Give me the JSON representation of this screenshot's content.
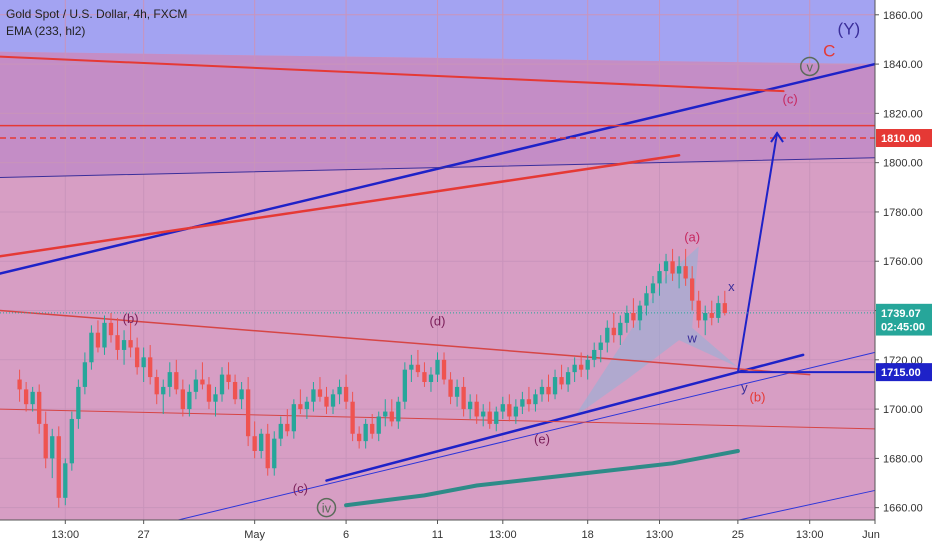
{
  "header": {
    "symbol_line": "Gold Spot / U.S. Dollar, 4h, FXCM",
    "indicator_line": "EMA (233, hl2)"
  },
  "chart_data": {
    "type": "candlestick",
    "symbol": "Gold Spot / U.S. Dollar",
    "timeframe": "4h",
    "source": "FXCM",
    "y_axis": {
      "range": [
        1655,
        1866
      ],
      "ticks": [
        1660,
        1680,
        1700,
        1720,
        1740,
        1760,
        1780,
        1800,
        1820,
        1840,
        1860
      ],
      "tick_labels": [
        "1660.00",
        "1680.00",
        "1700.00",
        "1720.00",
        "1740.00",
        "1760.00",
        "1780.00",
        "1800.00",
        "1820.00",
        "1840.00",
        "1860.00"
      ]
    },
    "x_axis": {
      "range_bars": [
        0,
        130
      ],
      "tick_bars": [
        7,
        19,
        36,
        50,
        64,
        74,
        87,
        98,
        110,
        121,
        131
      ],
      "tick_labels": [
        "13:00",
        "27",
        "May",
        "6",
        "11",
        "13:00",
        "18",
        "13:00",
        "25",
        "13:00",
        "Jun"
      ]
    },
    "price_labels": [
      {
        "text": "1810.00",
        "value": 1810.0,
        "color": "#e53935"
      },
      {
        "text": "1739.07",
        "value": 1739.07,
        "color": "#26a69a"
      },
      {
        "text": "02:45:00",
        "value": 1733.5,
        "color": "#26a69a"
      },
      {
        "text": "1715.00",
        "value": 1715.0,
        "color": "#1e22c8"
      }
    ],
    "candles_ohlc": [
      [
        1712,
        1716,
        1703,
        1708
      ],
      [
        1708,
        1711,
        1699,
        1702
      ],
      [
        1702,
        1709,
        1699,
        1707
      ],
      [
        1707,
        1710,
        1690,
        1694
      ],
      [
        1694,
        1699,
        1676,
        1680
      ],
      [
        1680,
        1692,
        1672,
        1689
      ],
      [
        1689,
        1693,
        1660,
        1664
      ],
      [
        1664,
        1680,
        1661,
        1678
      ],
      [
        1678,
        1699,
        1675,
        1696
      ],
      [
        1696,
        1712,
        1692,
        1709
      ],
      [
        1709,
        1723,
        1706,
        1719
      ],
      [
        1719,
        1734,
        1716,
        1731
      ],
      [
        1731,
        1736,
        1723,
        1725
      ],
      [
        1725,
        1738,
        1722,
        1735
      ],
      [
        1735,
        1739,
        1727,
        1730
      ],
      [
        1730,
        1737,
        1720,
        1724
      ],
      [
        1724,
        1732,
        1718,
        1728
      ],
      [
        1728,
        1735,
        1721,
        1725
      ],
      [
        1725,
        1729,
        1714,
        1717
      ],
      [
        1717,
        1725,
        1711,
        1721
      ],
      [
        1721,
        1726,
        1710,
        1713
      ],
      [
        1713,
        1716,
        1702,
        1706
      ],
      [
        1706,
        1712,
        1698,
        1709
      ],
      [
        1709,
        1719,
        1705,
        1715
      ],
      [
        1715,
        1720,
        1706,
        1708
      ],
      [
        1708,
        1712,
        1697,
        1700
      ],
      [
        1700,
        1710,
        1697,
        1707
      ],
      [
        1707,
        1716,
        1704,
        1712
      ],
      [
        1712,
        1719,
        1708,
        1710
      ],
      [
        1710,
        1713,
        1700,
        1703
      ],
      [
        1703,
        1709,
        1697,
        1706
      ],
      [
        1706,
        1717,
        1703,
        1714
      ],
      [
        1714,
        1719,
        1708,
        1711
      ],
      [
        1711,
        1714,
        1702,
        1704
      ],
      [
        1704,
        1711,
        1700,
        1708
      ],
      [
        1708,
        1713,
        1685,
        1689
      ],
      [
        1689,
        1695,
        1680,
        1683
      ],
      [
        1683,
        1692,
        1680,
        1690
      ],
      [
        1690,
        1694,
        1673,
        1676
      ],
      [
        1676,
        1691,
        1673,
        1688
      ],
      [
        1688,
        1697,
        1685,
        1694
      ],
      [
        1694,
        1700,
        1689,
        1691
      ],
      [
        1691,
        1704,
        1688,
        1702
      ],
      [
        1702,
        1708,
        1698,
        1700
      ],
      [
        1700,
        1705,
        1696,
        1703
      ],
      [
        1703,
        1711,
        1699,
        1708
      ],
      [
        1708,
        1713,
        1703,
        1705
      ],
      [
        1705,
        1709,
        1698,
        1701
      ],
      [
        1701,
        1708,
        1698,
        1706
      ],
      [
        1706,
        1712,
        1702,
        1709
      ],
      [
        1709,
        1714,
        1700,
        1703
      ],
      [
        1703,
        1707,
        1687,
        1690
      ],
      [
        1690,
        1693,
        1684,
        1687
      ],
      [
        1687,
        1696,
        1684,
        1694
      ],
      [
        1694,
        1698,
        1688,
        1690
      ],
      [
        1690,
        1699,
        1687,
        1697
      ],
      [
        1697,
        1704,
        1693,
        1699
      ],
      [
        1699,
        1704,
        1693,
        1695
      ],
      [
        1695,
        1705,
        1692,
        1703
      ],
      [
        1703,
        1719,
        1700,
        1716
      ],
      [
        1716,
        1722,
        1711,
        1718
      ],
      [
        1718,
        1724,
        1713,
        1715
      ],
      [
        1715,
        1719,
        1709,
        1711
      ],
      [
        1711,
        1717,
        1707,
        1714
      ],
      [
        1714,
        1723,
        1711,
        1720
      ],
      [
        1720,
        1723,
        1710,
        1712
      ],
      [
        1712,
        1715,
        1702,
        1705
      ],
      [
        1705,
        1712,
        1701,
        1709
      ],
      [
        1709,
        1713,
        1697,
        1700
      ],
      [
        1700,
        1706,
        1696,
        1703
      ],
      [
        1703,
        1706,
        1694,
        1697
      ],
      [
        1697,
        1702,
        1693,
        1699
      ],
      [
        1699,
        1703,
        1692,
        1694
      ],
      [
        1694,
        1701,
        1691,
        1699
      ],
      [
        1699,
        1705,
        1696,
        1702
      ],
      [
        1702,
        1706,
        1695,
        1697
      ],
      [
        1697,
        1704,
        1694,
        1701
      ],
      [
        1701,
        1707,
        1698,
        1704
      ],
      [
        1704,
        1709,
        1699,
        1702
      ],
      [
        1702,
        1708,
        1699,
        1706
      ],
      [
        1706,
        1712,
        1703,
        1709
      ],
      [
        1709,
        1714,
        1703,
        1706
      ],
      [
        1706,
        1716,
        1704,
        1713
      ],
      [
        1713,
        1718,
        1708,
        1710
      ],
      [
        1710,
        1717,
        1707,
        1715
      ],
      [
        1715,
        1721,
        1711,
        1718
      ],
      [
        1718,
        1723,
        1713,
        1716
      ],
      [
        1716,
        1722,
        1712,
        1720
      ],
      [
        1720,
        1727,
        1717,
        1724
      ],
      [
        1724,
        1730,
        1719,
        1727
      ],
      [
        1727,
        1736,
        1723,
        1733
      ],
      [
        1733,
        1739,
        1727,
        1730
      ],
      [
        1730,
        1738,
        1726,
        1735
      ],
      [
        1735,
        1742,
        1731,
        1739
      ],
      [
        1739,
        1745,
        1733,
        1736
      ],
      [
        1736,
        1744,
        1732,
        1742
      ],
      [
        1742,
        1750,
        1738,
        1747
      ],
      [
        1747,
        1754,
        1743,
        1751
      ],
      [
        1751,
        1759,
        1746,
        1756
      ],
      [
        1756,
        1763,
        1751,
        1760
      ],
      [
        1760,
        1765,
        1752,
        1755
      ],
      [
        1755,
        1762,
        1749,
        1758
      ],
      [
        1758,
        1765,
        1750,
        1753
      ],
      [
        1753,
        1758,
        1740,
        1744
      ],
      [
        1744,
        1748,
        1733,
        1736
      ],
      [
        1736,
        1742,
        1730,
        1739
      ],
      [
        1739,
        1744,
        1734,
        1737
      ],
      [
        1737,
        1746,
        1735,
        1743
      ],
      [
        1743,
        1748,
        1738,
        1739
      ]
    ],
    "ema_233": [
      [
        50,
        1661
      ],
      [
        56,
        1663
      ],
      [
        62,
        1665
      ],
      [
        70,
        1669
      ],
      [
        80,
        1672
      ],
      [
        90,
        1675
      ],
      [
        100,
        1678
      ],
      [
        106,
        1681
      ],
      [
        110,
        1683
      ]
    ],
    "overlays": {
      "lines": [
        {
          "name": "channel-upper",
          "color": "#1e22c8",
          "width": 2.5,
          "points": [
            [
              -3,
              1755
            ],
            [
              131,
              1840
            ]
          ]
        },
        {
          "name": "channel-lower",
          "color": "#1e22c8",
          "width": 2.5,
          "points": [
            [
              47,
              1671
            ],
            [
              120,
              1722
            ]
          ]
        },
        {
          "name": "thin-blue-a",
          "color": "#2d35d9",
          "width": 1,
          "points": [
            [
              18,
              1651
            ],
            [
              131,
              1723
            ]
          ]
        },
        {
          "name": "thin-blue-b",
          "color": "#2d35d9",
          "width": 1,
          "points": [
            [
              105,
              1652
            ],
            [
              131,
              1667
            ]
          ]
        },
        {
          "name": "thin-purple",
          "color": "#3a2e9a",
          "width": 1,
          "points": [
            [
              -3,
              1794
            ],
            [
              131,
              1802
            ]
          ]
        },
        {
          "name": "red-a",
          "color": "#e53935",
          "width": 2,
          "points": [
            [
              -3,
              1843
            ],
            [
              117,
              1829
            ]
          ]
        },
        {
          "name": "red-b",
          "color": "#e53935",
          "width": 2.5,
          "points": [
            [
              -3,
              1762
            ],
            [
              101,
              1803
            ]
          ]
        },
        {
          "name": "red-c",
          "color": "#e53935",
          "width": 1.5,
          "points": [
            [
              -3,
              1815
            ],
            [
              131,
              1815
            ]
          ]
        },
        {
          "name": "red-d",
          "color": "#d64545",
          "width": 1.5,
          "points": [
            [
              -3,
              1740
            ],
            [
              121,
              1714
            ]
          ]
        },
        {
          "name": "red-e",
          "color": "#d64545",
          "width": 1,
          "points": [
            [
              -3,
              1700
            ],
            [
              131,
              1692
            ]
          ]
        },
        {
          "name": "projection-1",
          "color": "#1e22c8",
          "width": 2,
          "points": [
            [
              110,
              1715
            ],
            [
              116,
              1812
            ]
          ]
        },
        {
          "name": "projection-2",
          "color": "#1e22c8",
          "width": 2,
          "points": [
            [
              110,
              1715
            ],
            [
              131,
              1715
            ]
          ]
        }
      ],
      "dashed_line": {
        "value": 1810.0,
        "color": "#e53935"
      },
      "labels": [
        {
          "text": "(Y)",
          "x": 127,
          "y": 1852,
          "color": "#3a2e9a"
        },
        {
          "text": "C",
          "x": 124,
          "y": 1843,
          "color": "#e53935"
        },
        {
          "text": "v",
          "x": 121,
          "y": 1837,
          "color": "#5a6b5a"
        },
        {
          "text": "(c)",
          "x": 118,
          "y": 1824,
          "color": "#c62860"
        },
        {
          "text": "(a)",
          "x": 103,
          "y": 1768,
          "color": "#c62860"
        },
        {
          "text": "x",
          "x": 109,
          "y": 1748,
          "color": "#3a2e9a"
        },
        {
          "text": "w",
          "x": 103,
          "y": 1727,
          "color": "#3a2e9a"
        },
        {
          "text": "y",
          "x": 111,
          "y": 1707,
          "color": "#3a2e9a"
        },
        {
          "text": "(b)",
          "x": 113,
          "y": 1703,
          "color": "#e53935"
        },
        {
          "text": "(b)",
          "x": 17,
          "y": 1735,
          "color": "#7b1f5a"
        },
        {
          "text": "(d)",
          "x": 64,
          "y": 1734,
          "color": "#7b1f5a"
        },
        {
          "text": "(e)",
          "x": 80,
          "y": 1686,
          "color": "#7b1f5a"
        },
        {
          "text": "(c)",
          "x": 43,
          "y": 1666,
          "color": "#7b1f5a"
        },
        {
          "text": "iv",
          "x": 47,
          "y": 1658,
          "color": "#5a6b5a"
        }
      ]
    }
  }
}
